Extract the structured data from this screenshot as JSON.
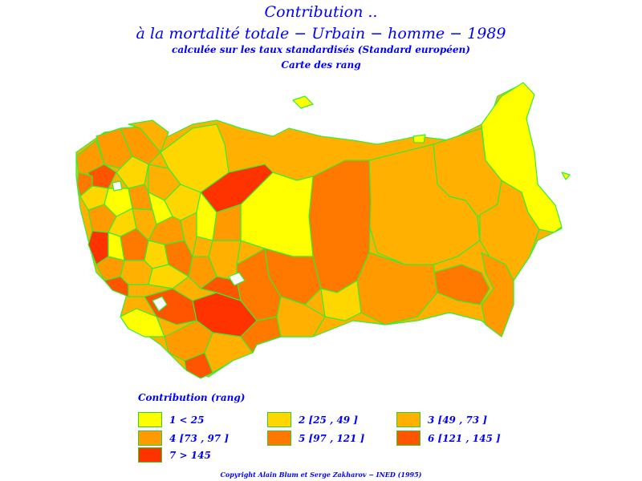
{
  "title": {
    "line1": "Contribution ..",
    "line2": "à la mortalité totale − Urbain − homme − 1989",
    "line3": "calculée sur les taux standardisés (Standard européen)",
    "line4": "Carte des rang"
  },
  "colors": {
    "border": "#33ee33",
    "c1": "#ffff00",
    "c2": "#ffd700",
    "c3": "#ffb000",
    "c4": "#ff9a00",
    "c5": "#ff7800",
    "c6": "#ff5500",
    "c7": "#ff3300"
  },
  "legend": {
    "title": "Contribution (rang)",
    "items": [
      {
        "label": "1  <  25",
        "color": "#ffff00"
      },
      {
        "label": "2 [25 , 49 ]",
        "color": "#ffd700"
      },
      {
        "label": "3 [49 , 73 ]",
        "color": "#ffb000"
      },
      {
        "label": "4 [73 , 97 ]",
        "color": "#ff9a00"
      },
      {
        "label": "5 [97 , 121 ]",
        "color": "#ff7800"
      },
      {
        "label": "6 [121 , 145 ]",
        "color": "#ff5500"
      },
      {
        "label": "7  >  145",
        "color": "#ff3300"
      }
    ]
  },
  "copyright": "Copyright Alain Blum et Serge Zakharov − INED (1995)"
}
